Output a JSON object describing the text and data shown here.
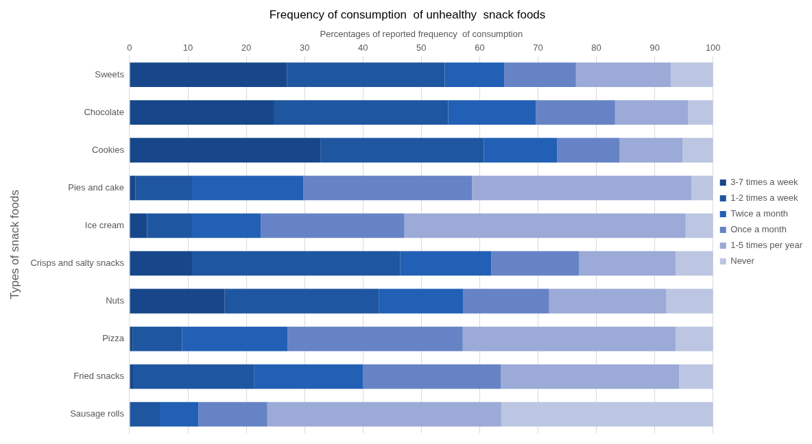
{
  "chart_data": {
    "type": "bar",
    "orientation": "horizontal",
    "stacked": true,
    "title": "Frequency of consumption  of unhealthy  snack foods",
    "xlabel": "Percentages of reported frequency  of consumption",
    "ylabel": "Types of snack foods",
    "categories": [
      "Sweets",
      "Chocolate",
      "Cookies",
      "Pies and cake",
      "Ice cream",
      "Crisps and salty snacks",
      "Nuts",
      "Pizza",
      "Fried snacks",
      "Sausage rolls"
    ],
    "series": [
      {
        "name": "3-7 times a week",
        "color": "#17478a",
        "values": [
          27,
          24.8,
          32.7,
          1,
          3,
          10.7,
          16.3,
          0.5,
          0.7,
          0
        ]
      },
      {
        "name": "1-2 times a week",
        "color": "#1f56a0",
        "values": [
          27,
          29.8,
          28,
          9.7,
          7.7,
          35.7,
          26.4,
          8.5,
          20.6,
          5.3
        ]
      },
      {
        "name": "Twice a month",
        "color": "#2160b5",
        "values": [
          10.2,
          15,
          12.6,
          19.1,
          11.8,
          15.6,
          14.5,
          18.1,
          18.7,
          6.5
        ]
      },
      {
        "name": "Once a month",
        "color": "#6683c6",
        "values": [
          12.3,
          13.6,
          10.7,
          28.9,
          24.6,
          15,
          14.7,
          30,
          23.6,
          11.8
        ]
      },
      {
        "name": "1-5 times per year",
        "color": "#9baad6",
        "values": [
          16.3,
          12.5,
          10.8,
          37.6,
          48.2,
          16.6,
          20.1,
          36.5,
          30.6,
          40.1
        ]
      },
      {
        "name": "Never",
        "color": "#bcc6e2",
        "values": [
          7.2,
          4.3,
          5.2,
          3.7,
          4.7,
          6.4,
          8,
          6.4,
          5.8,
          36.3
        ]
      }
    ],
    "xlim": [
      0,
      100
    ],
    "xticks": [
      0,
      10,
      20,
      30,
      40,
      50,
      60,
      70,
      80,
      90,
      100
    ],
    "grid": "x",
    "legend": "right"
  }
}
